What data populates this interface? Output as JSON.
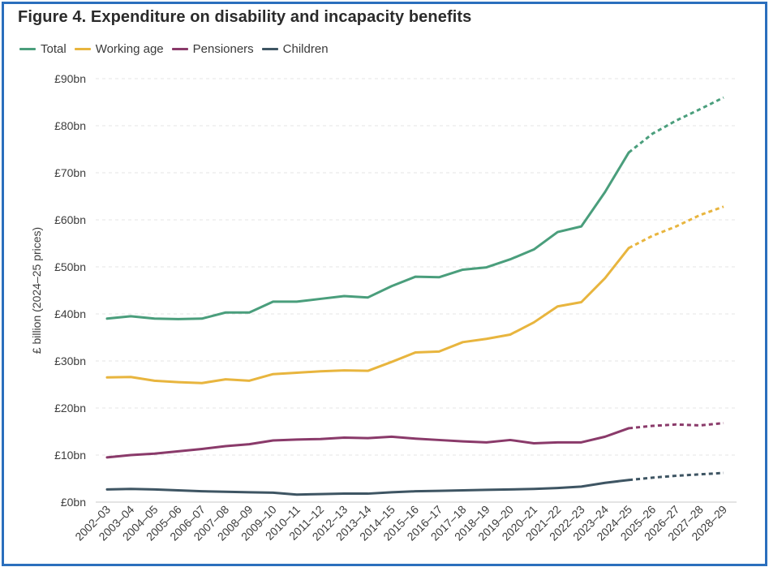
{
  "chart_data": {
    "type": "line",
    "title": "Figure 4. Expenditure on disability and incapacity benefits",
    "xlabel": "",
    "ylabel": "£ billion (2024–25 prices)",
    "ylim": [
      0,
      90
    ],
    "yticks": [
      "£0bn",
      "£10bn",
      "£20bn",
      "£30bn",
      "£40bn",
      "£50bn",
      "£60bn",
      "£70bn",
      "£80bn",
      "£90bn"
    ],
    "ytick_values": [
      0,
      10,
      20,
      30,
      40,
      50,
      60,
      70,
      80,
      90
    ],
    "categories": [
      "2002–03",
      "2003–04",
      "2004–05",
      "2005–06",
      "2006–07",
      "2007–08",
      "2008–09",
      "2009–10",
      "2010–11",
      "2011–12",
      "2012–13",
      "2013–14",
      "2014–15",
      "2015–16",
      "2016–17",
      "2017–18",
      "2018–19",
      "2019–20",
      "2020–21",
      "2021–22",
      "2022–23",
      "2023–24",
      "2024–25",
      "2025–26",
      "2026–27",
      "2027–28",
      "2028–29"
    ],
    "forecast_start_category": "2024–25",
    "series": [
      {
        "name": "Total",
        "color": "#4a9e7c",
        "values": [
          39.0,
          39.5,
          39.0,
          38.9,
          39.0,
          40.3,
          40.3,
          42.6,
          42.6,
          43.2,
          43.8,
          43.5,
          45.9,
          47.9,
          47.8,
          49.4,
          49.9,
          51.6,
          53.7,
          57.4,
          58.6,
          65.9,
          74.3,
          78.3,
          81.1,
          83.5,
          86.0
        ]
      },
      {
        "name": "Working age",
        "color": "#e8b53e",
        "values": [
          26.5,
          26.6,
          25.8,
          25.5,
          25.3,
          26.1,
          25.8,
          27.2,
          27.5,
          27.8,
          28.0,
          27.9,
          29.8,
          31.8,
          32.0,
          34.0,
          34.7,
          35.6,
          38.2,
          41.6,
          42.5,
          47.6,
          54.0,
          56.6,
          58.6,
          61.0,
          62.8
        ]
      },
      {
        "name": "Pensioners",
        "color": "#8a3a6a",
        "values": [
          9.5,
          10.0,
          10.3,
          10.8,
          11.3,
          11.9,
          12.3,
          13.1,
          13.3,
          13.4,
          13.7,
          13.6,
          13.9,
          13.5,
          13.2,
          12.9,
          12.7,
          13.2,
          12.5,
          12.7,
          12.7,
          13.9,
          15.7,
          16.2,
          16.5,
          16.3,
          16.8
        ]
      },
      {
        "name": "Children",
        "color": "#3e5563",
        "values": [
          2.7,
          2.8,
          2.7,
          2.5,
          2.3,
          2.2,
          2.1,
          2.0,
          1.6,
          1.7,
          1.8,
          1.8,
          2.1,
          2.3,
          2.4,
          2.5,
          2.6,
          2.7,
          2.8,
          3.0,
          3.3,
          4.1,
          4.7,
          5.2,
          5.6,
          5.9,
          6.2
        ]
      }
    ]
  }
}
